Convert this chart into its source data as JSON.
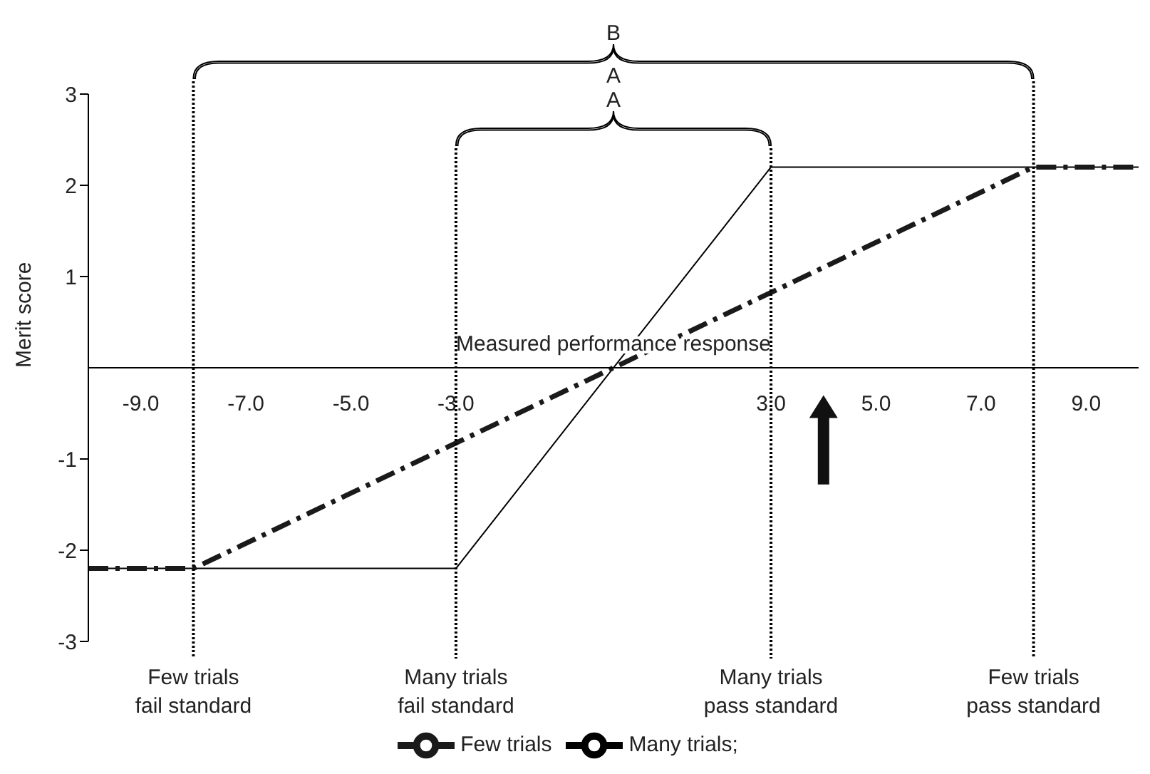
{
  "chart_data": {
    "type": "line",
    "xlabel": "Measured performance response",
    "ylabel": "Merit score",
    "xlim": [
      -10,
      10
    ],
    "ylim": [
      -3,
      3
    ],
    "xticks": [
      {
        "value": -9,
        "label": "-9.0"
      },
      {
        "value": -7,
        "label": "-7.0"
      },
      {
        "value": -5,
        "label": "-5.0"
      },
      {
        "value": -3,
        "label": "-3.0"
      },
      {
        "value": 3,
        "label": "3.0"
      },
      {
        "value": 5,
        "label": "5.0"
      },
      {
        "value": 7,
        "label": "7.0"
      },
      {
        "value": 9,
        "label": "9.0"
      }
    ],
    "yticks": [
      3,
      2,
      1,
      -1,
      -2,
      -3
    ],
    "series": [
      {
        "name": "Many trials;",
        "color": "#000000",
        "line_style": "solid",
        "x": [
          -10,
          -3,
          3,
          10
        ],
        "values": [
          -2.2,
          -2.2,
          2.2,
          2.2
        ]
      },
      {
        "name": "Few trials",
        "color": "#1a1a1a",
        "line_style": "dashed",
        "x": [
          -10,
          -8,
          8,
          10
        ],
        "values": [
          -2.2,
          -2.2,
          2.2,
          2.2
        ]
      }
    ],
    "ref_lines": [
      {
        "axis": "x",
        "value": -8,
        "label": "Few trials\nfail standard",
        "color": "#000000",
        "line_style": "dotted"
      },
      {
        "axis": "x",
        "value": -3,
        "label": "Many trials\nfail standard",
        "color": "#000000",
        "line_style": "dotted"
      },
      {
        "axis": "x",
        "value": 3,
        "label": "Many trials\npass standard",
        "color": "#000000",
        "line_style": "dotted"
      },
      {
        "axis": "x",
        "value": 8,
        "label": "Few trials\npass standard",
        "color": "#000000",
        "line_style": "dotted"
      }
    ],
    "annotations": [
      "B",
      "A",
      "A"
    ],
    "legend": "bottom",
    "marker": "none"
  }
}
